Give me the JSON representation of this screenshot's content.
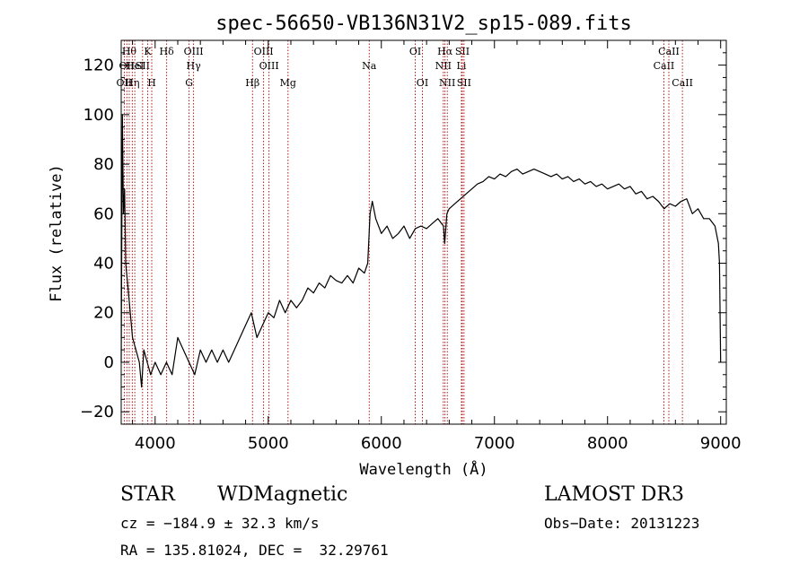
{
  "chart_data": {
    "type": "line",
    "title": "spec-56650-VB136N31V2_sp15-089.fits",
    "xlabel": "Wavelength (Å)",
    "ylabel": "Flux (relative)",
    "xlim": [
      3700,
      9050
    ],
    "ylim": [
      -25,
      130
    ],
    "xticks": [
      4000,
      5000,
      6000,
      7000,
      8000,
      9000
    ],
    "yticks": [
      -20,
      0,
      20,
      40,
      60,
      80,
      100,
      120
    ],
    "grid": false,
    "line_color": "#000000",
    "marker_color": "#aa0000",
    "series": [
      {
        "x": [
          3700,
          3710,
          3720,
          3730,
          3740,
          3760,
          3780,
          3800,
          3830,
          3860,
          3880,
          3900,
          3930,
          3960,
          4000,
          4050,
          4100,
          4150,
          4200,
          4250,
          4300,
          4350,
          4400,
          4450,
          4500,
          4550,
          4600,
          4650,
          4700,
          4750,
          4800,
          4850,
          4900,
          4950,
          5000,
          5050,
          5100,
          5150,
          5200,
          5250,
          5300,
          5350,
          5400,
          5450,
          5500,
          5550,
          5600,
          5650,
          5700,
          5750,
          5800,
          5850,
          5880,
          5900,
          5920,
          5950,
          6000,
          6050,
          6100,
          6150,
          6200,
          6250,
          6300,
          6350,
          6400,
          6450,
          6500,
          6550,
          6560,
          6580,
          6600,
          6650,
          6700,
          6750,
          6800,
          6850,
          6900,
          6950,
          7000,
          7050,
          7100,
          7150,
          7200,
          7250,
          7300,
          7350,
          7400,
          7450,
          7500,
          7550,
          7600,
          7650,
          7700,
          7750,
          7800,
          7850,
          7900,
          7950,
          8000,
          8050,
          8100,
          8150,
          8200,
          8250,
          8300,
          8350,
          8400,
          8450,
          8500,
          8550,
          8600,
          8650,
          8700,
          8750,
          8800,
          8850,
          8900,
          8950,
          8980,
          8990,
          9000
        ],
        "y": [
          0,
          100,
          60,
          70,
          40,
          30,
          20,
          10,
          5,
          0,
          -10,
          5,
          0,
          -5,
          0,
          -5,
          0,
          -5,
          10,
          5,
          0,
          -5,
          5,
          0,
          5,
          0,
          5,
          0,
          5,
          10,
          15,
          20,
          10,
          15,
          20,
          18,
          25,
          20,
          25,
          22,
          25,
          30,
          28,
          32,
          30,
          35,
          33,
          32,
          35,
          32,
          38,
          36,
          40,
          60,
          65,
          58,
          52,
          55,
          50,
          52,
          55,
          50,
          54,
          55,
          54,
          56,
          58,
          55,
          48,
          60,
          62,
          64,
          66,
          68,
          70,
          72,
          73,
          75,
          74,
          76,
          75,
          77,
          78,
          76,
          77,
          78,
          77,
          76,
          75,
          76,
          74,
          75,
          73,
          74,
          72,
          73,
          71,
          72,
          70,
          71,
          72,
          70,
          71,
          68,
          69,
          66,
          67,
          65,
          62,
          64,
          63,
          65,
          66,
          60,
          62,
          58,
          58,
          55,
          48,
          40,
          0
        ]
      }
    ],
    "lines": [
      {
        "wavelength": 3727,
        "labels": [
          "OII"
        ],
        "rows": [
          3
        ]
      },
      {
        "wavelength": 3750,
        "labels": [
          "OII"
        ],
        "rows": [
          2
        ]
      },
      {
        "wavelength": 3771,
        "labels": [
          "Hθ"
        ],
        "rows": [
          1
        ]
      },
      {
        "wavelength": 3798,
        "labels": [
          "Hη"
        ],
        "rows": [
          3
        ]
      },
      {
        "wavelength": 3820,
        "labels": [
          "HeI"
        ],
        "rows": [
          2
        ]
      },
      {
        "wavelength": 3889,
        "labels": [
          "SII"
        ],
        "rows": [
          2
        ]
      },
      {
        "wavelength": 3934,
        "labels": [
          "K"
        ],
        "rows": [
          1
        ]
      },
      {
        "wavelength": 3970,
        "labels": [
          "H"
        ],
        "rows": [
          3
        ]
      },
      {
        "wavelength": 4102,
        "labels": [
          "Hδ"
        ],
        "rows": [
          1
        ]
      },
      {
        "wavelength": 4300,
        "labels": [
          "G"
        ],
        "rows": [
          3
        ]
      },
      {
        "wavelength": 4340,
        "labels": [
          "OIII",
          "Hγ"
        ],
        "rows": [
          1,
          2
        ]
      },
      {
        "wavelength": 4861,
        "labels": [
          "Hβ"
        ],
        "rows": [
          3
        ]
      },
      {
        "wavelength": 4959,
        "labels": [
          "OIII"
        ],
        "rows": [
          1
        ]
      },
      {
        "wavelength": 5007,
        "labels": [
          "OIII"
        ],
        "rows": [
          2
        ]
      },
      {
        "wavelength": 5175,
        "labels": [
          "Mg"
        ],
        "rows": [
          3
        ]
      },
      {
        "wavelength": 5893,
        "labels": [
          "Na"
        ],
        "rows": [
          2
        ]
      },
      {
        "wavelength": 6300,
        "labels": [
          "OI"
        ],
        "rows": [
          1
        ]
      },
      {
        "wavelength": 6363,
        "labels": [
          "OI"
        ],
        "rows": [
          3
        ]
      },
      {
        "wavelength": 6548,
        "labels": [
          "NII"
        ],
        "rows": [
          2
        ]
      },
      {
        "wavelength": 6563,
        "labels": [
          "Hα"
        ],
        "rows": [
          1
        ]
      },
      {
        "wavelength": 6583,
        "labels": [
          "NII"
        ],
        "rows": [
          3
        ]
      },
      {
        "wavelength": 6708,
        "labels": [
          "Li"
        ],
        "rows": [
          2
        ]
      },
      {
        "wavelength": 6716,
        "labels": [
          "SII"
        ],
        "rows": [
          1
        ]
      },
      {
        "wavelength": 6731,
        "labels": [
          "SII"
        ],
        "rows": [
          3
        ]
      },
      {
        "wavelength": 8498,
        "labels": [
          "CaII"
        ],
        "rows": [
          2
        ]
      },
      {
        "wavelength": 8542,
        "labels": [
          "CaII"
        ],
        "rows": [
          1
        ]
      },
      {
        "wavelength": 8662,
        "labels": [
          "CaII"
        ],
        "rows": [
          3
        ]
      }
    ]
  },
  "info": {
    "class": "STAR",
    "subclass": "WDMagnetic",
    "survey": "LAMOST DR3",
    "cz": "cz = −184.9 ± 32.3 km/s",
    "obs_date": "Obs−Date: 20131223",
    "coords": "RA = 135.81024, DEC =  32.29761"
  }
}
